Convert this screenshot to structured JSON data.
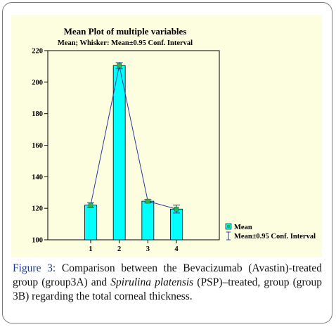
{
  "chart_data": {
    "type": "bar",
    "title": "Mean Plot of multiple variables",
    "subtitle": "Mean; Whisker: Mean±0.95 Conf. Interval",
    "categories": [
      "1",
      "2",
      "3",
      "4"
    ],
    "series": [
      {
        "name": "Mean",
        "values": [
          122,
          210.5,
          124.5,
          119.5
        ]
      }
    ],
    "conf_interval": [
      {
        "low": 120.5,
        "high": 123.5
      },
      {
        "low": 208.5,
        "high": 212.5
      },
      {
        "low": 123.5,
        "high": 125.5
      },
      {
        "low": 117.0,
        "high": 122.0
      }
    ],
    "ylim": [
      100,
      220
    ],
    "y_ticks": [
      100,
      120,
      140,
      160,
      180,
      200,
      220
    ],
    "legend": {
      "placement": "bottom-right",
      "entries": [
        "Mean",
        "Mean±0.95 Conf. Interval"
      ]
    },
    "grid": false,
    "colors": {
      "bar": "#00ffff",
      "line": "#2b3a9e",
      "marker": "#2db34a"
    }
  },
  "caption": {
    "label": "Figure 3:",
    "text_a": " Comparison between the Bevacizumab (Avastin)-treated group (group3A) and ",
    "italic": "Spirulina platensis",
    "text_b": " (PSP)–treated, group (group 3B) regarding the total corneal thickness."
  }
}
